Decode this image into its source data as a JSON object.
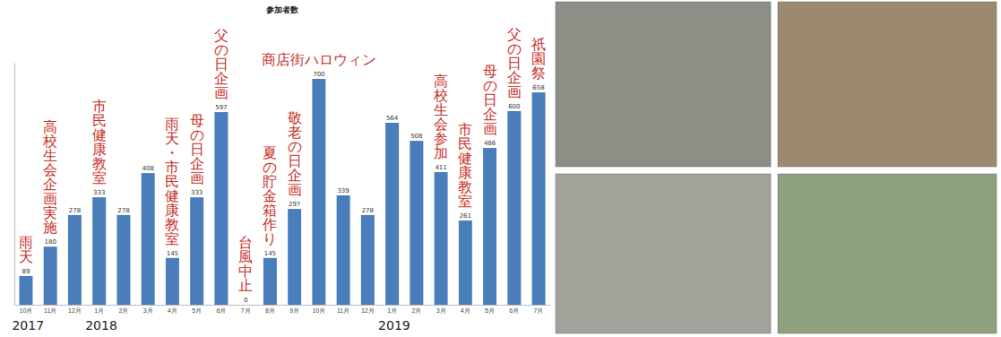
{
  "chart_data": {
    "type": "bar",
    "title": "参加者数",
    "categories": [
      "10月",
      "11月",
      "12月",
      "1月",
      "2月",
      "3月",
      "4月",
      "5月",
      "6月",
      "7月",
      "8月",
      "9月",
      "10月",
      "11月",
      "12月",
      "1月",
      "2月",
      "3月",
      "4月",
      "5月",
      "6月",
      "7月"
    ],
    "values": [
      89,
      180,
      278,
      333,
      278,
      408,
      145,
      333,
      597,
      0,
      145,
      297,
      700,
      339,
      278,
      564,
      508,
      411,
      261,
      486,
      600,
      658
    ],
    "color": "#4a7ebb",
    "ylim": [
      0,
      750
    ],
    "data_labels": true,
    "tick_labels": "x",
    "annotations": [
      {
        "text": "雨天",
        "index": 0
      },
      {
        "text": "高校生会企画実施",
        "index": 1
      },
      {
        "text": "市民健康教室",
        "index": 3
      },
      {
        "text": "雨天・市民健康教室",
        "index": 6
      },
      {
        "text": "母の日企画",
        "index": 7
      },
      {
        "text": "父の日企画",
        "index": 8
      },
      {
        "text": "台風中止",
        "index": 9
      },
      {
        "text": "夏の貯金箱作り",
        "index": 10
      },
      {
        "text": "敬老の日企画",
        "index": 11
      },
      {
        "text": "商店街ハロウィン",
        "index": 12
      },
      {
        "text": "高校生会参加",
        "index": 17
      },
      {
        "text": "市民健康教室",
        "index": 18
      },
      {
        "text": "母の日企画",
        "index": 19
      },
      {
        "text": "父の日企画",
        "index": 20
      },
      {
        "text": "祇園祭",
        "index": 21
      }
    ],
    "year_labels": [
      {
        "text": "2017",
        "index": 0
      },
      {
        "text": "2018",
        "index": 3
      },
      {
        "text": "2019",
        "index": 15
      }
    ]
  }
}
